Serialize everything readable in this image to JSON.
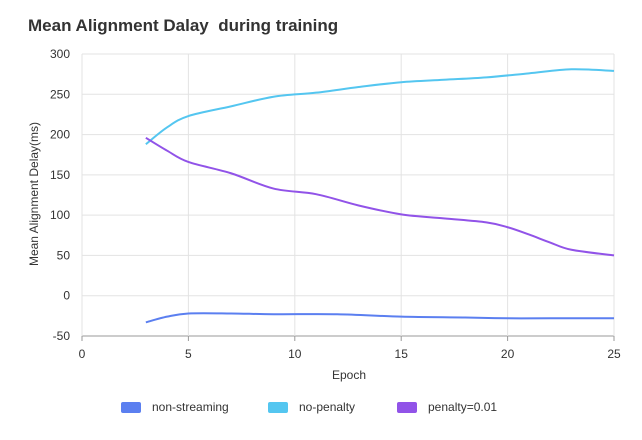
{
  "chart_data": {
    "type": "line",
    "title": "Mean Alignment Dalay  during training",
    "xlabel": "Epoch",
    "ylabel": "Mean Alignment Delay(ms)",
    "xlim": [
      0,
      25
    ],
    "ylim": [
      -50,
      300
    ],
    "x_ticks": [
      0,
      5,
      10,
      15,
      20,
      25
    ],
    "y_ticks": [
      -50,
      0,
      50,
      100,
      150,
      200,
      250,
      300
    ],
    "grid": true,
    "legend_position": "bottom",
    "series": [
      {
        "name": "non-streaming",
        "color": "#5b7ff0",
        "points": [
          [
            3,
            -33
          ],
          [
            4,
            -26
          ],
          [
            5,
            -22
          ],
          [
            7,
            -22
          ],
          [
            9,
            -23
          ],
          [
            12,
            -23
          ],
          [
            15,
            -26
          ],
          [
            18,
            -27
          ],
          [
            20,
            -28
          ],
          [
            22,
            -28
          ],
          [
            25,
            -28
          ]
        ]
      },
      {
        "name": "no-penalty",
        "color": "#54c6f0",
        "points": [
          [
            3,
            188
          ],
          [
            4,
            209
          ],
          [
            5,
            223
          ],
          [
            7,
            235
          ],
          [
            9,
            247
          ],
          [
            11,
            252
          ],
          [
            13,
            259
          ],
          [
            15,
            265
          ],
          [
            17,
            268
          ],
          [
            19,
            271
          ],
          [
            21,
            276
          ],
          [
            23,
            281
          ],
          [
            25,
            279
          ]
        ]
      },
      {
        "name": "penalty=0.01",
        "color": "#9153e8",
        "points": [
          [
            3,
            196
          ],
          [
            4,
            180
          ],
          [
            5,
            166
          ],
          [
            7,
            152
          ],
          [
            9,
            133
          ],
          [
            11,
            126
          ],
          [
            13,
            112
          ],
          [
            15,
            101
          ],
          [
            17,
            96
          ],
          [
            19,
            91
          ],
          [
            20,
            85
          ],
          [
            21,
            76
          ],
          [
            22,
            66
          ],
          [
            23,
            57
          ],
          [
            25,
            50
          ]
        ]
      }
    ]
  }
}
